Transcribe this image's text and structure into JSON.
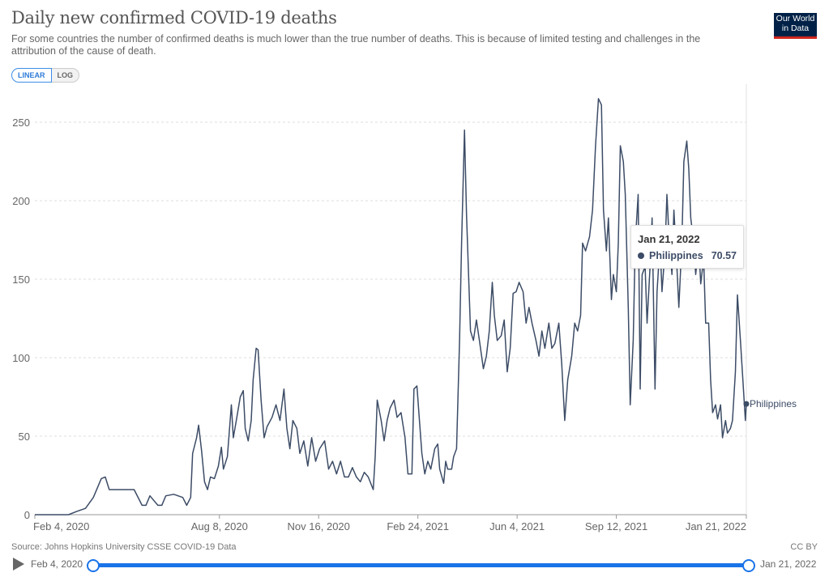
{
  "header": {
    "title": "Daily new confirmed COVID-19 deaths",
    "subtitle": "For some countries the number of confirmed deaths is much lower than the true number of deaths. This is because of limited testing and challenges in the attribution of the cause of death.",
    "logo": "Our World in Data"
  },
  "controls": {
    "linear": "LINEAR",
    "log": "LOG"
  },
  "tooltip": {
    "date": "Jan 21, 2022",
    "series": "Philippines",
    "value": "70.57"
  },
  "footer": {
    "source": "Source: Johns Hopkins University CSSE COVID-19 Data",
    "license": "CC BY"
  },
  "timeline": {
    "start": "Feb 4, 2020",
    "end": "Jan 21, 2022"
  },
  "colors": {
    "line": "#3c4c66",
    "accent": "#1a73e8"
  },
  "chart_data": {
    "type": "line",
    "title": "Daily new confirmed COVID-19 deaths",
    "xlabel": "",
    "ylabel": "",
    "x_unit": "days since Feb 4, 2020",
    "xlim": [
      0,
      717
    ],
    "ylim": [
      0,
      275
    ],
    "yticks": [
      0,
      50,
      100,
      150,
      200,
      250
    ],
    "xticks": [
      {
        "day": 0,
        "label": "Feb 4, 2020"
      },
      {
        "day": 186,
        "label": "Aug 8, 2020"
      },
      {
        "day": 286,
        "label": "Nov 16, 2020"
      },
      {
        "day": 386,
        "label": "Feb 24, 2021"
      },
      {
        "day": 486,
        "label": "Jun 4, 2021"
      },
      {
        "day": 586,
        "label": "Sep 12, 2021"
      },
      {
        "day": 717,
        "label": "Jan 21, 2022"
      }
    ],
    "grid": true,
    "legend": "end-of-line label",
    "series": [
      {
        "name": "Philippines",
        "x": [
          0,
          34,
          42,
          51,
          59,
          67,
          71,
          75,
          83,
          100,
          108,
          112,
          116,
          124,
          128,
          132,
          140,
          149,
          153,
          157,
          159,
          163,
          165,
          168,
          171,
          174,
          177,
          181,
          185,
          188,
          190,
          194,
          198,
          200,
          203,
          207,
          210,
          212,
          215,
          218,
          220,
          223,
          225,
          228,
          231,
          234,
          239,
          243,
          247,
          251,
          254,
          257,
          260,
          264,
          267,
          271,
          275,
          279,
          283,
          287,
          292,
          296,
          300,
          304,
          308,
          312,
          316,
          320,
          324,
          328,
          332,
          336,
          341,
          343,
          345,
          349,
          352,
          355,
          358,
          362,
          365,
          369,
          373,
          376,
          380,
          382,
          385,
          387,
          390,
          393,
          396,
          399,
          403,
          406,
          408,
          412,
          414,
          416,
          420,
          422,
          425,
          428,
          430,
          433,
          435,
          439,
          442,
          445,
          448,
          452,
          455,
          458,
          461,
          463,
          466,
          470,
          473,
          476,
          479,
          482,
          485,
          488,
          492,
          495,
          498,
          501,
          505,
          508,
          511,
          514,
          518,
          521,
          524,
          528,
          531,
          534,
          537,
          541,
          544,
          547,
          550,
          552,
          555,
          559,
          562,
          565,
          568,
          571,
          573,
          576,
          578,
          581,
          583,
          586,
          588,
          590,
          593,
          595,
          598,
          600,
          603,
          605,
          608,
          610,
          612,
          615,
          617,
          620,
          622,
          625,
          627,
          630,
          632,
          635,
          637,
          639,
          642,
          644,
          647,
          649,
          652,
          654,
          657,
          659,
          661,
          664,
          666,
          669,
          671,
          674,
          676,
          679,
          681,
          683,
          686,
          688,
          691,
          693,
          696,
          698,
          701,
          703,
          706,
          708,
          711,
          713,
          716,
          717
        ],
        "y": [
          0,
          0,
          2,
          4,
          11,
          23,
          24,
          16,
          16,
          16,
          6,
          6,
          12,
          6,
          6,
          12,
          13,
          11,
          6,
          11,
          39,
          49,
          57,
          41,
          21,
          16,
          24,
          23,
          31,
          43,
          29,
          37,
          70,
          49,
          60,
          75,
          79,
          55,
          47,
          60,
          86,
          106,
          105,
          73,
          49,
          56,
          62,
          70,
          60,
          80,
          55,
          42,
          60,
          55,
          39,
          47,
          31,
          49,
          34,
          42,
          47,
          29,
          34,
          26,
          34,
          24,
          24,
          30,
          24,
          21,
          27,
          24,
          16,
          37,
          73,
          60,
          47,
          60,
          68,
          73,
          62,
          65,
          49,
          26,
          26,
          80,
          82,
          65,
          39,
          26,
          34,
          29,
          42,
          45,
          29,
          20,
          34,
          29,
          29,
          37,
          42,
          111,
          173,
          245,
          191,
          117,
          111,
          124,
          111,
          93,
          101,
          117,
          148,
          127,
          111,
          114,
          124,
          91,
          106,
          141,
          142,
          148,
          142,
          122,
          132,
          122,
          111,
          101,
          117,
          106,
          122,
          106,
          109,
          122,
          96,
          60,
          86,
          101,
          122,
          117,
          127,
          173,
          168,
          177,
          194,
          235,
          265,
          261,
          194,
          168,
          189,
          137,
          153,
          142,
          173,
          235,
          225,
          204,
          132,
          70,
          111,
          173,
          204,
          80,
          153,
          158,
          122,
          158,
          189,
          80,
          142,
          173,
          142,
          168,
          204,
          178,
          153,
          194,
          158,
          132,
          173,
          225,
          238,
          220,
          189,
          173,
          153,
          173,
          147,
          163,
          122,
          122,
          86,
          65,
          70,
          61,
          70,
          49,
          60,
          52,
          55,
          60,
          91,
          140,
          111,
          91,
          60,
          70.57
        ]
      }
    ]
  }
}
